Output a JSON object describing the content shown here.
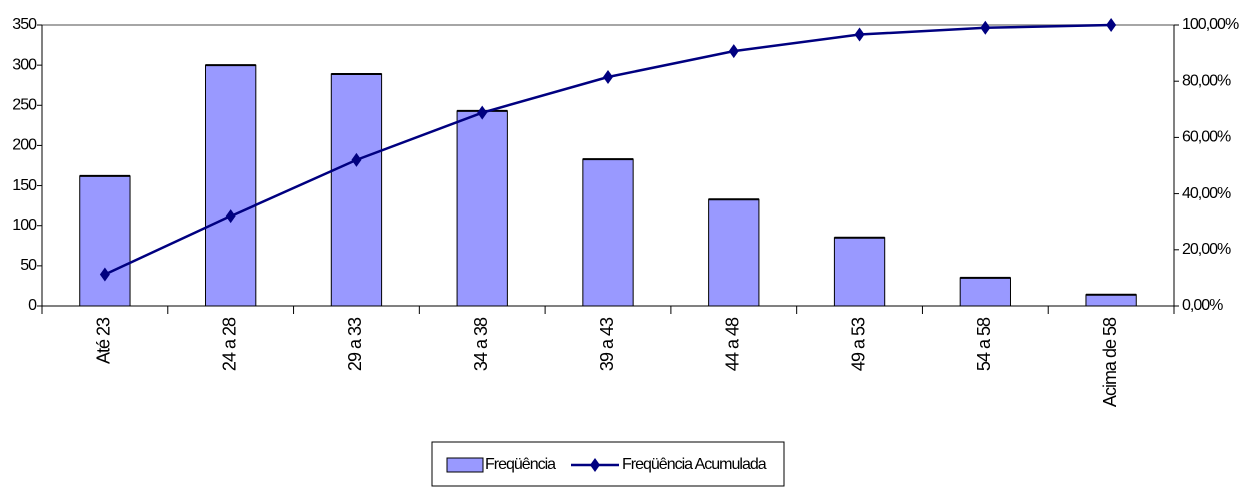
{
  "chart_data": {
    "type": "bar",
    "categories": [
      "Até 23",
      "24 a 28",
      "29 a 33",
      "34 a 38",
      "39 a 43",
      "44 a 48",
      "49 a 53",
      "54 a 58",
      "Acima de 58"
    ],
    "series": [
      {
        "name": "Freqüência",
        "type": "bar",
        "color": "#9999ff",
        "values": [
          162,
          300,
          289,
          243,
          183,
          133,
          85,
          35,
          14
        ]
      },
      {
        "name": "Freqüência Acumulada",
        "type": "line",
        "axis": "y2",
        "color": "#000080",
        "values": [
          11.2,
          32.0,
          52.0,
          68.8,
          81.5,
          90.7,
          96.6,
          99.0,
          100
        ]
      }
    ],
    "ylim": [
      0,
      350
    ],
    "yticks": [
      0,
      50,
      100,
      150,
      200,
      250,
      300,
      350
    ],
    "y2lim": [
      0,
      100
    ],
    "y2ticks": [
      {
        "value": 0,
        "label": "0,00%"
      },
      {
        "value": 20,
        "label": "20,00%"
      },
      {
        "value": 40,
        "label": "40,00%"
      },
      {
        "value": 60,
        "label": "60,00%"
      },
      {
        "value": 80,
        "label": "80,00%"
      },
      {
        "value": 100,
        "label": "100,00%"
      }
    ],
    "legend": "bottom"
  }
}
